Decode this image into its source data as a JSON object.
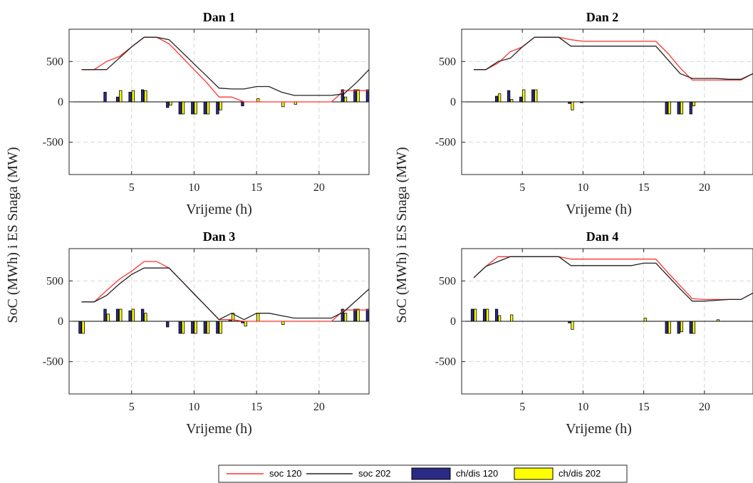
{
  "colors": {
    "soc120": "#ff3333",
    "soc202": "#222222",
    "ch120": "#2b2a85",
    "ch202": "#ffff00",
    "grid": "#d6d6d6",
    "axis": "#262626"
  },
  "figure": {
    "ylabel": "SoC (MWh) i ES Snaga (MW)",
    "legend": [
      "soc 120",
      "soc 202",
      "ch/dis 120",
      "ch/dis 202"
    ]
  },
  "chart_data": [
    {
      "type": "line",
      "title": "Dan 1",
      "xlabel": "Vrijeme (h)",
      "ylabel": "SoC (MWh) i ES Snaga (MW)",
      "xlim": [
        0,
        24
      ],
      "ylim": [
        -900,
        900
      ],
      "xticks": [
        5,
        10,
        15,
        20
      ],
      "yticks": [
        500,
        0,
        -500
      ],
      "grid": true,
      "x": [
        1,
        2,
        3,
        4,
        5,
        6,
        7,
        8,
        9,
        10,
        11,
        12,
        13,
        14,
        15,
        16,
        17,
        18,
        19,
        20,
        21,
        22,
        23,
        24
      ],
      "series": [
        {
          "name": "soc 120",
          "kind": "line",
          "values": [
            400,
            400,
            500,
            560,
            680,
            800,
            800,
            720,
            560,
            400,
            240,
            60,
            60,
            0,
            0,
            0,
            0,
            0,
            0,
            0,
            0,
            140,
            140,
            140
          ]
        },
        {
          "name": "soc 202",
          "kind": "line",
          "values": [
            400,
            400,
            400,
            540,
            680,
            800,
            800,
            770,
            620,
            470,
            320,
            170,
            160,
            160,
            190,
            190,
            120,
            80,
            80,
            80,
            80,
            100,
            240,
            400
          ]
        },
        {
          "name": "ch/dis 120",
          "kind": "bar",
          "values": [
            0,
            0,
            120,
            60,
            120,
            150,
            0,
            -70,
            -150,
            -150,
            -150,
            -150,
            0,
            -50,
            0,
            0,
            0,
            0,
            0,
            0,
            0,
            150,
            150,
            150
          ]
        },
        {
          "name": "ch/dis 202",
          "kind": "bar",
          "values": [
            0,
            0,
            0,
            140,
            140,
            140,
            0,
            -40,
            -150,
            -150,
            -150,
            -100,
            0,
            0,
            40,
            0,
            -60,
            -30,
            0,
            0,
            0,
            60,
            150,
            150
          ]
        }
      ]
    },
    {
      "type": "line",
      "title": "Dan 2",
      "xlabel": "Vrijeme (h)",
      "ylabel": "SoC (MWh) i ES Snaga (MW)",
      "xlim": [
        0,
        24
      ],
      "ylim": [
        -900,
        900
      ],
      "xticks": [
        5,
        10,
        15,
        20
      ],
      "yticks": [
        500,
        0,
        -500
      ],
      "grid": true,
      "x": [
        1,
        2,
        3,
        4,
        5,
        6,
        7,
        8,
        9,
        10,
        11,
        12,
        13,
        14,
        15,
        16,
        17,
        18,
        19,
        20,
        21,
        22,
        23,
        24
      ],
      "series": [
        {
          "name": "soc 120",
          "kind": "line",
          "values": [
            400,
            400,
            480,
            620,
            680,
            800,
            800,
            800,
            770,
            750,
            750,
            750,
            750,
            750,
            750,
            750,
            600,
            420,
            270,
            270,
            270,
            270,
            270,
            350
          ]
        },
        {
          "name": "soc 202",
          "kind": "line",
          "values": [
            400,
            400,
            500,
            540,
            680,
            800,
            800,
            800,
            690,
            690,
            690,
            690,
            690,
            690,
            690,
            690,
            520,
            350,
            290,
            290,
            290,
            280,
            280,
            350
          ]
        },
        {
          "name": "ch/dis 120",
          "kind": "bar",
          "values": [
            0,
            0,
            70,
            140,
            60,
            150,
            0,
            0,
            -20,
            -10,
            0,
            0,
            0,
            0,
            0,
            0,
            -150,
            -150,
            -150,
            0,
            0,
            0,
            0,
            0
          ]
        },
        {
          "name": "ch/dis 202",
          "kind": "bar",
          "values": [
            0,
            0,
            100,
            30,
            150,
            150,
            0,
            0,
            -100,
            0,
            0,
            0,
            0,
            0,
            0,
            0,
            -150,
            -150,
            -50,
            0,
            0,
            0,
            0,
            0
          ]
        }
      ]
    },
    {
      "type": "line",
      "title": "Dan 3",
      "xlabel": "Vrijeme (h)",
      "ylabel": "SoC (MWh) i ES Snaga (MW)",
      "xlim": [
        0,
        24
      ],
      "ylim": [
        -900,
        900
      ],
      "xticks": [
        5,
        10,
        15,
        20
      ],
      "yticks": [
        500,
        0,
        -500
      ],
      "grid": true,
      "x": [
        1,
        2,
        3,
        4,
        5,
        6,
        7,
        8,
        9,
        10,
        11,
        12,
        13,
        14,
        15,
        16,
        17,
        18,
        19,
        20,
        21,
        22,
        23,
        24
      ],
      "series": [
        {
          "name": "soc 120",
          "kind": "line",
          "values": [
            240,
            240,
            380,
            520,
            620,
            740,
            740,
            660,
            500,
            340,
            180,
            20,
            20,
            0,
            0,
            0,
            0,
            0,
            0,
            0,
            0,
            140,
            140,
            140
          ]
        },
        {
          "name": "soc 202",
          "kind": "line",
          "values": [
            240,
            240,
            320,
            460,
            580,
            660,
            660,
            660,
            500,
            340,
            180,
            20,
            100,
            20,
            100,
            100,
            70,
            40,
            40,
            40,
            40,
            120,
            260,
            400
          ]
        },
        {
          "name": "ch/dis 120",
          "kind": "bar",
          "values": [
            -150,
            0,
            150,
            150,
            130,
            150,
            0,
            -70,
            -150,
            -150,
            -150,
            -150,
            20,
            -20,
            0,
            0,
            0,
            0,
            0,
            0,
            0,
            150,
            150,
            150
          ]
        },
        {
          "name": "ch/dis 202",
          "kind": "bar",
          "values": [
            -150,
            0,
            90,
            150,
            150,
            100,
            0,
            0,
            -150,
            -150,
            -150,
            -150,
            100,
            -60,
            100,
            0,
            -40,
            0,
            0,
            0,
            0,
            100,
            150,
            150
          ]
        }
      ]
    },
    {
      "type": "line",
      "title": "Dan 4",
      "xlabel": "Vrijeme (h)",
      "ylabel": "SoC (MWh) i ES Snaga (MW)",
      "xlim": [
        0,
        24
      ],
      "ylim": [
        -900,
        900
      ],
      "xticks": [
        5,
        10,
        15,
        20
      ],
      "yticks": [
        500,
        0,
        -500
      ],
      "grid": true,
      "x": [
        1,
        2,
        3,
        4,
        5,
        6,
        7,
        8,
        9,
        10,
        11,
        12,
        13,
        14,
        15,
        16,
        17,
        18,
        19,
        20,
        21,
        22,
        23,
        24
      ],
      "series": [
        {
          "name": "soc 120",
          "kind": "line",
          "values": [
            540,
            680,
            800,
            800,
            800,
            800,
            800,
            800,
            770,
            770,
            770,
            770,
            770,
            770,
            770,
            770,
            600,
            440,
            280,
            270,
            270,
            270,
            270,
            350
          ]
        },
        {
          "name": "soc 202",
          "kind": "line",
          "values": [
            540,
            680,
            740,
            800,
            800,
            800,
            800,
            800,
            690,
            690,
            690,
            690,
            690,
            690,
            720,
            720,
            560,
            400,
            250,
            250,
            260,
            270,
            270,
            350
          ]
        },
        {
          "name": "ch/dis 120",
          "kind": "bar",
          "values": [
            150,
            150,
            150,
            0,
            0,
            0,
            0,
            0,
            -20,
            0,
            0,
            0,
            0,
            0,
            0,
            0,
            -150,
            -150,
            -150,
            0,
            0,
            0,
            0,
            0
          ]
        },
        {
          "name": "ch/dis 202",
          "kind": "bar",
          "values": [
            150,
            150,
            70,
            80,
            0,
            0,
            0,
            0,
            -100,
            0,
            0,
            0,
            0,
            0,
            40,
            0,
            -150,
            -130,
            -150,
            0,
            20,
            0,
            0,
            0
          ]
        }
      ]
    }
  ]
}
